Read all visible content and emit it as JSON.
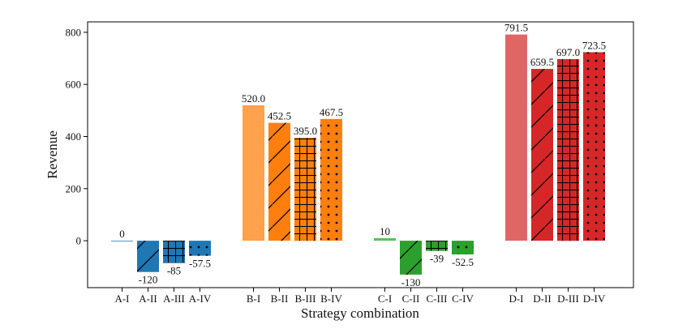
{
  "chart_data": {
    "type": "bar",
    "title": "",
    "xlabel": "Strategy combination",
    "ylabel": "Revenue",
    "ylim": [
      -180,
      840
    ],
    "yticks": [
      0,
      200,
      400,
      600,
      800
    ],
    "grid": false,
    "legend": "none",
    "groups": [
      {
        "name": "A",
        "bars": [
          {
            "category": "A-I",
            "value": 0,
            "label": "0",
            "color": "#4a90c9",
            "pattern": "none"
          },
          {
            "category": "A-II",
            "value": -120,
            "label": "-120",
            "color": "#1f77b4",
            "pattern": "diagonal"
          },
          {
            "category": "A-III",
            "value": -85,
            "label": "-85",
            "color": "#1f77b4",
            "pattern": "grid"
          },
          {
            "category": "A-IV",
            "value": -57.5,
            "label": "-57.5",
            "color": "#1f77b4",
            "pattern": "dots"
          }
        ]
      },
      {
        "name": "B",
        "bars": [
          {
            "category": "B-I",
            "value": 520.0,
            "label": "520.0",
            "color": "#ffa14d",
            "pattern": "none"
          },
          {
            "category": "B-II",
            "value": 452.5,
            "label": "452.5",
            "color": "#ff7f0e",
            "pattern": "diagonal"
          },
          {
            "category": "B-III",
            "value": 395.0,
            "label": "395.0",
            "color": "#ff7f0e",
            "pattern": "grid"
          },
          {
            "category": "B-IV",
            "value": 467.5,
            "label": "467.5",
            "color": "#ff7f0e",
            "pattern": "dots"
          }
        ]
      },
      {
        "name": "C",
        "bars": [
          {
            "category": "C-I",
            "value": 10,
            "label": "10",
            "color": "#5cbf5c",
            "pattern": "none"
          },
          {
            "category": "C-II",
            "value": -130,
            "label": "-130",
            "color": "#2ca02c",
            "pattern": "diagonal"
          },
          {
            "category": "C-III",
            "value": -39,
            "label": "-39",
            "color": "#2ca02c",
            "pattern": "grid"
          },
          {
            "category": "C-IV",
            "value": -52.5,
            "label": "-52.5",
            "color": "#2ca02c",
            "pattern": "dots"
          }
        ]
      },
      {
        "name": "D",
        "bars": [
          {
            "category": "D-I",
            "value": 791.5,
            "label": "791.5",
            "color": "#e06666",
            "pattern": "none"
          },
          {
            "category": "D-II",
            "value": 659.5,
            "label": "659.5",
            "color": "#d62728",
            "pattern": "diagonal"
          },
          {
            "category": "D-III",
            "value": 697.0,
            "label": "697.0",
            "color": "#d62728",
            "pattern": "grid"
          },
          {
            "category": "D-IV",
            "value": 723.5,
            "label": "723.5",
            "color": "#d62728",
            "pattern": "dots"
          }
        ]
      }
    ]
  }
}
